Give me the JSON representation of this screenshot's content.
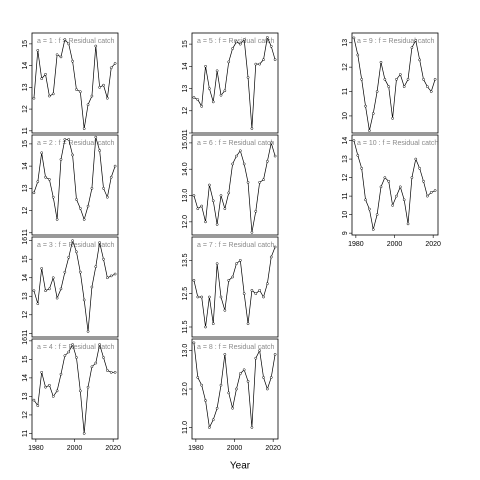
{
  "xlabel": "Year",
  "chart_data": [
    {
      "type": "line",
      "title": "a = 1  :  f = Residual catch",
      "x": [
        1979,
        1981,
        1983,
        1985,
        1987,
        1989,
        1991,
        1993,
        1995,
        1997,
        1999,
        2001,
        2003,
        2005,
        2007,
        2009,
        2011,
        2013,
        2015,
        2017,
        2019,
        2021
      ],
      "values": [
        12.5,
        14.7,
        13.4,
        13.6,
        12.6,
        12.7,
        14.5,
        14.4,
        15.2,
        15.0,
        14.2,
        12.9,
        12.8,
        11.1,
        12.2,
        12.6,
        14.9,
        13.0,
        13.1,
        12.5,
        13.9,
        14.1
      ],
      "xlim": [
        1978,
        2022.5
      ],
      "ylim": [
        10.9,
        15.5
      ],
      "yticks": [
        11,
        12,
        13,
        14,
        15
      ]
    },
    {
      "type": "line",
      "title": "a = 2  :  f = Residual catch",
      "x": [
        1979,
        1981,
        1983,
        1985,
        1987,
        1989,
        1991,
        1993,
        1995,
        1997,
        1999,
        2001,
        2003,
        2005,
        2007,
        2009,
        2011,
        2013,
        2015,
        2017,
        2019,
        2021
      ],
      "values": [
        12.8,
        13.3,
        14.6,
        13.5,
        13.4,
        12.6,
        11.6,
        14.3,
        15.2,
        15.2,
        14.5,
        12.5,
        12.1,
        11.6,
        12.2,
        13.0,
        15.3,
        14.7,
        13.0,
        12.6,
        13.5,
        14.0
      ],
      "xlim": [
        1978,
        2022.5
      ],
      "ylim": [
        10.9,
        15.4
      ],
      "yticks": [
        11,
        12,
        13,
        14,
        15
      ]
    },
    {
      "type": "line",
      "title": "a = 3  :  f = Residual catch",
      "x": [
        1979,
        1981,
        1983,
        1985,
        1987,
        1989,
        1991,
        1993,
        1995,
        1997,
        1999,
        2001,
        2003,
        2005,
        2007,
        2009,
        2011,
        2013,
        2015,
        2017,
        2019,
        2021
      ],
      "values": [
        13.3,
        12.6,
        14.5,
        13.3,
        13.4,
        14.0,
        12.9,
        13.4,
        14.3,
        15.1,
        16.0,
        15.4,
        14.3,
        12.8,
        11.1,
        13.5,
        14.6,
        15.9,
        15.0,
        14.0,
        14.1,
        14.2
      ],
      "xlim": [
        1978,
        2022.5
      ],
      "ylim": [
        10.8,
        16.2
      ],
      "yticks": [
        11,
        12,
        13,
        14,
        15,
        16
      ]
    },
    {
      "type": "line",
      "title": "a = 4  :  f = Residual catch",
      "x": [
        1979,
        1981,
        1983,
        1985,
        1987,
        1989,
        1991,
        1993,
        1995,
        1997,
        1999,
        2001,
        2003,
        2005,
        2007,
        2009,
        2011,
        2013,
        2015,
        2017,
        2019,
        2021
      ],
      "values": [
        12.8,
        12.5,
        14.3,
        13.5,
        13.6,
        13.0,
        13.3,
        14.2,
        15.2,
        15.4,
        15.8,
        15.1,
        13.3,
        11.0,
        13.5,
        14.6,
        14.8,
        15.8,
        15.1,
        14.4,
        14.3,
        14.3
      ],
      "xlim": [
        1978,
        2022.5
      ],
      "ylim": [
        10.7,
        16.1
      ],
      "yticks": [
        11,
        12,
        13,
        14,
        15,
        16
      ],
      "xticks": [
        1980,
        2000,
        2020
      ]
    },
    {
      "type": "line",
      "title": "a = 5  :  f = Residual catch",
      "x": [
        1979,
        1981,
        1983,
        1985,
        1987,
        1989,
        1991,
        1993,
        1995,
        1997,
        1999,
        2001,
        2003,
        2005,
        2007,
        2009,
        2011,
        2013,
        2015,
        2017,
        2019,
        2021
      ],
      "values": [
        12.6,
        12.5,
        12.2,
        14.0,
        13.0,
        12.4,
        13.8,
        12.7,
        12.9,
        14.2,
        14.8,
        15.1,
        15.0,
        15.2,
        13.5,
        11.2,
        14.1,
        14.1,
        14.3,
        15.3,
        14.9,
        14.3
      ],
      "xlim": [
        1978,
        2022.5
      ],
      "ylim": [
        11.0,
        15.5
      ],
      "yticks": [
        11,
        12,
        13,
        14,
        15
      ]
    },
    {
      "type": "line",
      "title": "a = 6  :  f = Residual catch",
      "x": [
        1979,
        1981,
        1983,
        1985,
        1987,
        1989,
        1991,
        1993,
        1995,
        1997,
        1999,
        2001,
        2003,
        2005,
        2007,
        2009,
        2011,
        2013,
        2015,
        2017,
        2019,
        2021
      ],
      "values": [
        13.0,
        12.5,
        12.6,
        12.0,
        13.4,
        12.8,
        11.9,
        13.0,
        12.5,
        13.1,
        14.2,
        14.5,
        14.7,
        14.2,
        13.5,
        11.6,
        12.4,
        13.5,
        13.6,
        14.3,
        15.0,
        14.5
      ],
      "xlim": [
        1978,
        2022.5
      ],
      "ylim": [
        11.5,
        15.3
      ],
      "yticks": [
        {
          "value": 12,
          "label": "12.0"
        },
        {
          "value": 13,
          "label": "13.0"
        },
        {
          "value": 14,
          "label": "14.0"
        },
        {
          "value": 15,
          "label": "15.0"
        }
      ]
    },
    {
      "type": "line",
      "title": "a = 7  :  f = Residual catch",
      "x": [
        1979,
        1981,
        1983,
        1985,
        1987,
        1989,
        1991,
        1993,
        1995,
        1997,
        1999,
        2001,
        2003,
        2005,
        2007,
        2009,
        2011,
        2013,
        2015,
        2017,
        2019,
        2021
      ],
      "values": [
        12.9,
        12.4,
        12.4,
        11.5,
        12.4,
        11.6,
        13.4,
        12.4,
        12.0,
        12.9,
        13.0,
        13.4,
        13.5,
        12.5,
        11.6,
        12.6,
        12.5,
        12.6,
        12.4,
        12.8,
        13.6,
        13.9
      ],
      "xlim": [
        1978,
        2022.5
      ],
      "ylim": [
        11.2,
        14.2
      ],
      "yticks": [
        11.5,
        12.5,
        13.5
      ]
    },
    {
      "type": "line",
      "title": "a = 8  :  f = Residual catch",
      "x": [
        1979,
        1981,
        1983,
        1985,
        1987,
        1989,
        1991,
        1993,
        1995,
        1997,
        1999,
        2001,
        2003,
        2005,
        2007,
        2009,
        2011,
        2013,
        2015,
        2017,
        2019,
        2021
      ],
      "values": [
        13.2,
        12.3,
        12.1,
        11.7,
        11.0,
        11.2,
        11.5,
        12.1,
        12.9,
        11.9,
        11.5,
        12.0,
        12.4,
        12.5,
        12.2,
        11.0,
        12.8,
        13.0,
        12.3,
        12.0,
        12.3,
        12.9
      ],
      "xlim": [
        1978,
        2022.5
      ],
      "ylim": [
        10.7,
        13.3
      ],
      "yticks": [
        {
          "value": 11,
          "label": "11.0"
        },
        {
          "value": 12,
          "label": "12.0"
        },
        {
          "value": 13,
          "label": "13.0"
        }
      ],
      "xticks": [
        1980,
        2000,
        2020
      ]
    },
    {
      "type": "line",
      "title": "a = 9  :  f = Residual catch",
      "x": [
        1979,
        1981,
        1983,
        1985,
        1987,
        1989,
        1991,
        1993,
        1995,
        1997,
        1999,
        2001,
        2003,
        2005,
        2007,
        2009,
        2011,
        2013,
        2015,
        2017,
        2019,
        2021
      ],
      "values": [
        13.2,
        12.5,
        11.5,
        10.4,
        9.4,
        10.1,
        11.0,
        12.2,
        11.5,
        11.2,
        9.9,
        11.5,
        11.7,
        11.2,
        11.5,
        12.8,
        13.1,
        12.3,
        11.5,
        11.2,
        11.0,
        11.5
      ],
      "xlim": [
        1978,
        2022.5
      ],
      "ylim": [
        9.3,
        13.4
      ],
      "yticks": [
        10,
        11,
        12,
        13
      ]
    },
    {
      "type": "line",
      "title": "a = 10  :  f = Residual catch",
      "x": [
        1979,
        1981,
        1983,
        1985,
        1987,
        1989,
        1991,
        1993,
        1995,
        1997,
        1999,
        2001,
        2003,
        2005,
        2007,
        2009,
        2011,
        2013,
        2015,
        2017,
        2019,
        2021
      ],
      "values": [
        14.0,
        13.2,
        12.5,
        10.8,
        10.3,
        9.2,
        10.0,
        11.5,
        12.0,
        11.8,
        10.5,
        11.0,
        11.5,
        10.8,
        9.5,
        12.0,
        13.0,
        12.5,
        11.8,
        11.0,
        11.2,
        11.3
      ],
      "xlim": [
        1978,
        2022.5
      ],
      "ylim": [
        8.9,
        14.3
      ],
      "yticks": [
        9,
        10,
        11,
        12,
        13,
        14
      ],
      "xticks": [
        1980,
        2000,
        2020
      ]
    }
  ]
}
